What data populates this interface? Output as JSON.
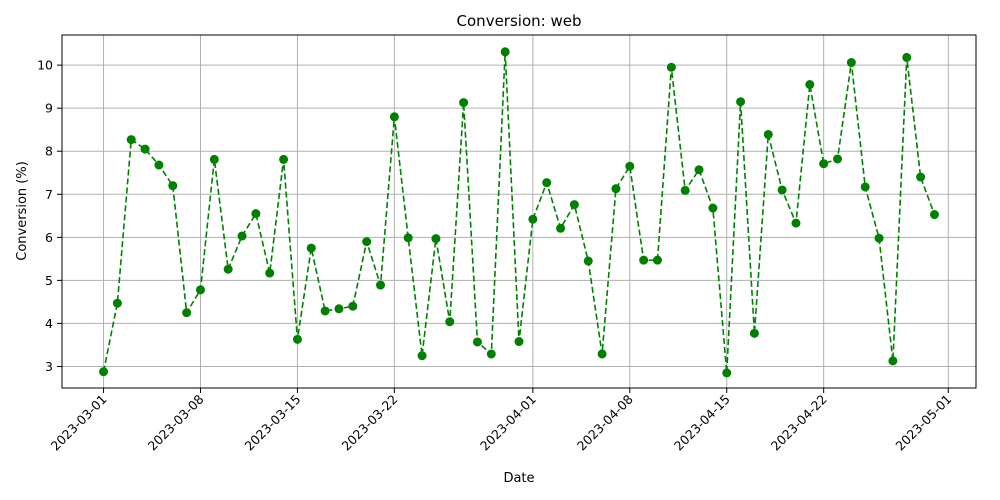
{
  "chart_data": {
    "type": "line",
    "title": "Conversion: web",
    "xlabel": "Date",
    "ylabel": "Conversion (%)",
    "xlim": [
      "2023-02-26",
      "2023-05-03"
    ],
    "ylim": [
      2.5,
      10.7
    ],
    "grid": true,
    "line_style": "dashed",
    "marker": "circle",
    "color": "#008000",
    "x_ticks": [
      "2023-03-01",
      "2023-03-08",
      "2023-03-15",
      "2023-03-22",
      "2023-04-01",
      "2023-04-08",
      "2023-04-15",
      "2023-04-22",
      "2023-05-01"
    ],
    "y_ticks": [
      "3",
      "4",
      "5",
      "6",
      "7",
      "8",
      "9",
      "10"
    ],
    "series": [
      {
        "x": [
          "2023-03-01",
          "2023-03-02",
          "2023-03-03",
          "2023-03-04",
          "2023-03-05",
          "2023-03-06",
          "2023-03-07",
          "2023-03-08",
          "2023-03-09",
          "2023-03-10",
          "2023-03-11",
          "2023-03-12",
          "2023-03-13",
          "2023-03-14",
          "2023-03-15",
          "2023-03-16",
          "2023-03-17",
          "2023-03-18",
          "2023-03-19",
          "2023-03-20",
          "2023-03-21",
          "2023-03-22",
          "2023-03-23",
          "2023-03-24",
          "2023-03-25",
          "2023-03-26",
          "2023-03-27",
          "2023-03-28",
          "2023-03-29",
          "2023-03-30",
          "2023-03-31",
          "2023-04-01",
          "2023-04-02",
          "2023-04-03",
          "2023-04-04",
          "2023-04-05",
          "2023-04-06",
          "2023-04-07",
          "2023-04-08",
          "2023-04-09",
          "2023-04-10",
          "2023-04-11",
          "2023-04-12",
          "2023-04-13",
          "2023-04-14",
          "2023-04-15",
          "2023-04-16",
          "2023-04-17",
          "2023-04-18",
          "2023-04-19",
          "2023-04-20",
          "2023-04-21",
          "2023-04-22",
          "2023-04-23",
          "2023-04-24",
          "2023-04-25",
          "2023-04-26",
          "2023-04-27",
          "2023-04-28",
          "2023-04-29",
          "2023-04-30"
        ],
        "values": [
          2.88,
          4.47,
          8.27,
          8.05,
          7.68,
          7.2,
          4.25,
          4.78,
          7.81,
          5.26,
          6.03,
          6.55,
          5.17,
          7.81,
          3.63,
          5.75,
          4.29,
          4.34,
          4.4,
          5.9,
          4.89,
          8.8,
          5.99,
          3.25,
          5.97,
          4.04,
          9.13,
          3.57,
          3.29,
          10.31,
          3.58,
          6.42,
          7.27,
          6.21,
          6.76,
          5.45,
          3.29,
          7.13,
          7.65,
          5.47,
          5.47,
          9.95,
          7.09,
          7.57,
          6.68,
          2.85,
          9.15,
          3.77,
          8.39,
          7.1,
          6.33,
          9.55,
          7.71,
          7.82,
          10.06,
          7.17,
          5.98,
          3.13,
          10.18,
          7.4,
          6.53
        ]
      }
    ]
  }
}
